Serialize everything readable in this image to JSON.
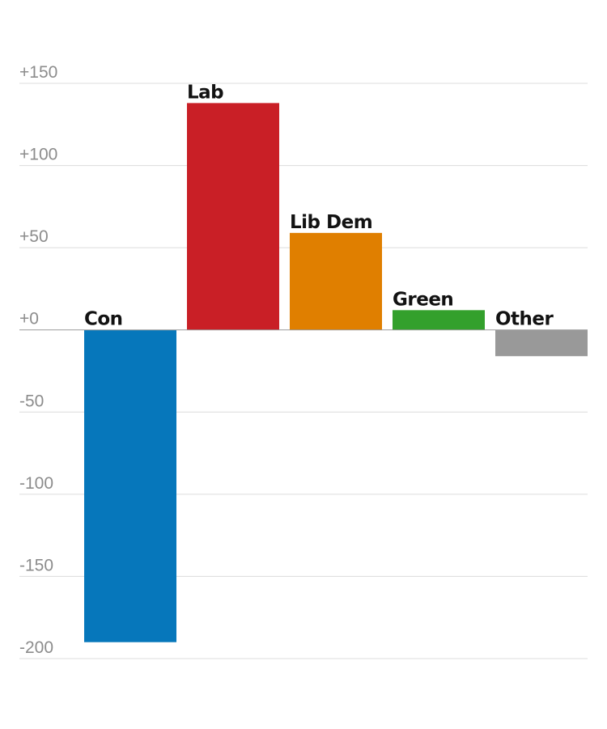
{
  "chart_data": {
    "type": "bar",
    "title": "",
    "xlabel": "",
    "ylabel": "",
    "categories": [
      "Con",
      "Lab",
      "Lib Dem",
      "Green",
      "Other"
    ],
    "values": [
      -190,
      138,
      59,
      12,
      -16
    ],
    "colors": [
      "#0677bb",
      "#c91f26",
      "#e07f00",
      "#33a02c",
      "#999999"
    ],
    "ylim": [
      -200,
      150
    ],
    "yticks": [
      150,
      100,
      50,
      0,
      -50,
      -100,
      -150,
      -200
    ],
    "ytick_labels": [
      "+150",
      "+100",
      "+50",
      "+0",
      "-50",
      "-100",
      "-150",
      "-200"
    ],
    "grid": true
  }
}
